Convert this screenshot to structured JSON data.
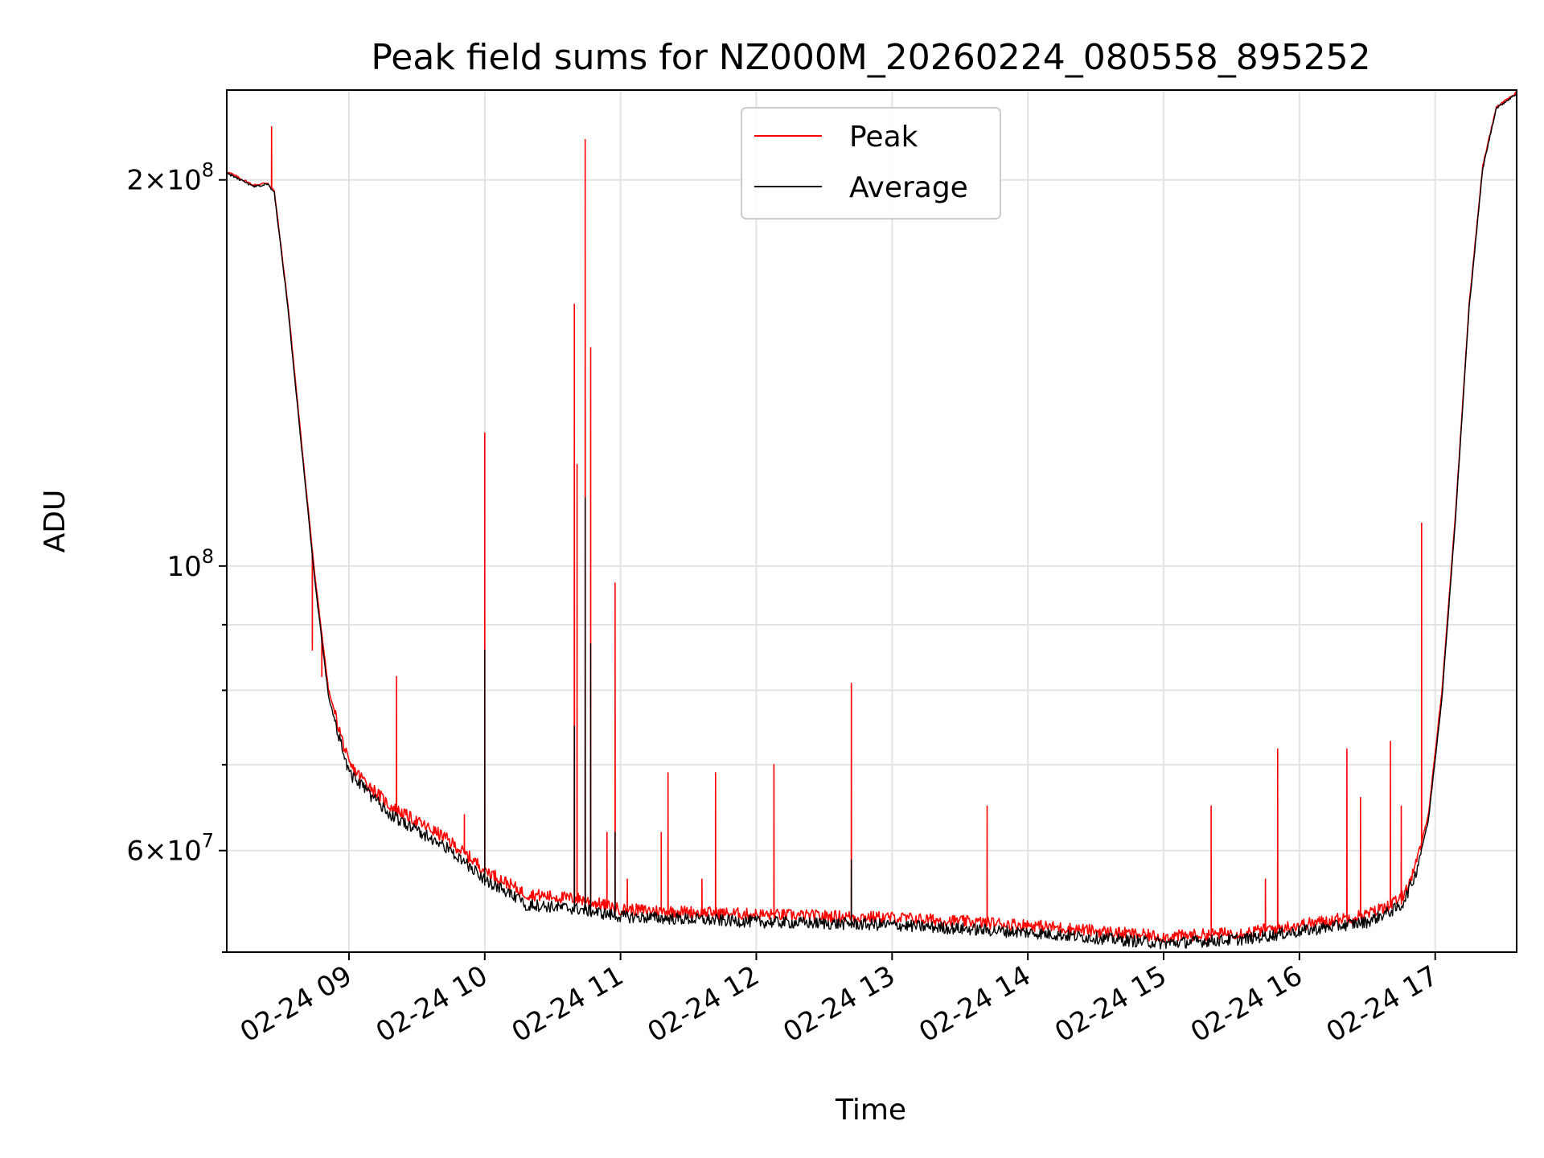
{
  "chart_data": {
    "type": "line",
    "title": "Peak field sums for NZ000M_20260224_080558_895252",
    "xlabel": "Time",
    "ylabel": "ADU",
    "yscale": "log",
    "ylim": [
      50000000,
      235000000
    ],
    "xlim_hours": [
      8.1,
      17.6
    ],
    "grid": true,
    "legend_position": "top-center",
    "x_ticks": [
      {
        "value": 9,
        "label": "02-24 09"
      },
      {
        "value": 10,
        "label": "02-24 10"
      },
      {
        "value": 11,
        "label": "02-24 11"
      },
      {
        "value": 12,
        "label": "02-24 12"
      },
      {
        "value": 13,
        "label": "02-24 13"
      },
      {
        "value": 14,
        "label": "02-24 14"
      },
      {
        "value": 15,
        "label": "02-24 15"
      },
      {
        "value": 16,
        "label": "02-24 16"
      },
      {
        "value": 17,
        "label": "02-24 17"
      }
    ],
    "y_ticks": [
      {
        "value": 60000000,
        "mantissa": "6",
        "exponent": "7"
      },
      {
        "value": 100000000,
        "mantissa": "",
        "exponent": "8"
      },
      {
        "value": 200000000,
        "mantissa": "2",
        "exponent": "8"
      }
    ],
    "y_minor_ticks": [
      50000000,
      70000000,
      80000000,
      90000000
    ],
    "series": [
      {
        "name": "Peak",
        "color": "#ff0000",
        "baseline": [
          [
            8.1,
            203000000
          ],
          [
            8.3,
            198000000
          ],
          [
            8.4,
            199000000
          ],
          [
            8.45,
            196000000
          ],
          [
            8.55,
            160000000
          ],
          [
            8.65,
            125000000
          ],
          [
            8.75,
            98000000
          ],
          [
            8.85,
            80000000
          ],
          [
            9.0,
            70000000
          ],
          [
            9.3,
            65000000
          ],
          [
            9.7,
            61500000
          ],
          [
            10.0,
            58000000
          ],
          [
            10.3,
            55500000
          ],
          [
            10.7,
            55000000
          ],
          [
            11.0,
            54000000
          ],
          [
            12.0,
            53500000
          ],
          [
            13.0,
            53200000
          ],
          [
            14.0,
            52500000
          ],
          [
            15.0,
            51400000
          ],
          [
            15.6,
            51800000
          ],
          [
            16.0,
            52500000
          ],
          [
            16.5,
            53500000
          ],
          [
            16.75,
            55000000
          ],
          [
            16.85,
            58000000
          ],
          [
            16.95,
            64000000
          ],
          [
            17.05,
            80000000
          ],
          [
            17.15,
            110000000
          ],
          [
            17.25,
            160000000
          ],
          [
            17.35,
            205000000
          ],
          [
            17.45,
            228000000
          ],
          [
            17.6,
            234000000
          ]
        ],
        "spikes": [
          [
            8.43,
            220000000
          ],
          [
            8.73,
            86000000
          ],
          [
            8.8,
            82000000
          ],
          [
            9.35,
            82000000
          ],
          [
            9.85,
            64000000
          ],
          [
            10.0,
            127000000
          ],
          [
            10.66,
            160000000
          ],
          [
            10.68,
            120000000
          ],
          [
            10.74,
            215000000
          ],
          [
            10.78,
            148000000
          ],
          [
            10.9,
            62000000
          ],
          [
            10.96,
            97000000
          ],
          [
            11.05,
            57000000
          ],
          [
            11.3,
            62000000
          ],
          [
            11.35,
            69000000
          ],
          [
            11.6,
            57000000
          ],
          [
            11.7,
            69000000
          ],
          [
            12.13,
            70000000
          ],
          [
            12.7,
            81000000
          ],
          [
            13.7,
            65000000
          ],
          [
            15.35,
            65000000
          ],
          [
            15.75,
            57000000
          ],
          [
            15.84,
            72000000
          ],
          [
            16.35,
            72000000
          ],
          [
            16.45,
            66000000
          ],
          [
            16.67,
            73000000
          ],
          [
            16.75,
            65000000
          ],
          [
            16.9,
            108000000
          ]
        ]
      },
      {
        "name": "Average",
        "color": "#000000",
        "baseline": [
          [
            8.1,
            202500000
          ],
          [
            8.3,
            197500000
          ],
          [
            8.4,
            198500000
          ],
          [
            8.45,
            195500000
          ],
          [
            8.55,
            159000000
          ],
          [
            8.65,
            124000000
          ],
          [
            8.75,
            97000000
          ],
          [
            8.85,
            79000000
          ],
          [
            9.0,
            69000000
          ],
          [
            9.3,
            64000000
          ],
          [
            9.7,
            60500000
          ],
          [
            10.0,
            57000000
          ],
          [
            10.3,
            54500000
          ],
          [
            10.7,
            54000000
          ],
          [
            11.0,
            53300000
          ],
          [
            12.0,
            52800000
          ],
          [
            13.0,
            52500000
          ],
          [
            14.0,
            51800000
          ],
          [
            15.0,
            50800000
          ],
          [
            15.6,
            51200000
          ],
          [
            16.0,
            51900000
          ],
          [
            16.5,
            52800000
          ],
          [
            16.75,
            54300000
          ],
          [
            16.85,
            57300000
          ],
          [
            16.95,
            63300000
          ],
          [
            17.05,
            79000000
          ],
          [
            17.15,
            109000000
          ],
          [
            17.25,
            159000000
          ],
          [
            17.35,
            204000000
          ],
          [
            17.45,
            227500000
          ],
          [
            17.6,
            233500000
          ]
        ],
        "spikes": [
          [
            10.0,
            86000000
          ],
          [
            10.66,
            75000000
          ],
          [
            10.74,
            113000000
          ],
          [
            10.78,
            87000000
          ],
          [
            10.96,
            62000000
          ],
          [
            12.7,
            59000000
          ]
        ]
      }
    ]
  }
}
